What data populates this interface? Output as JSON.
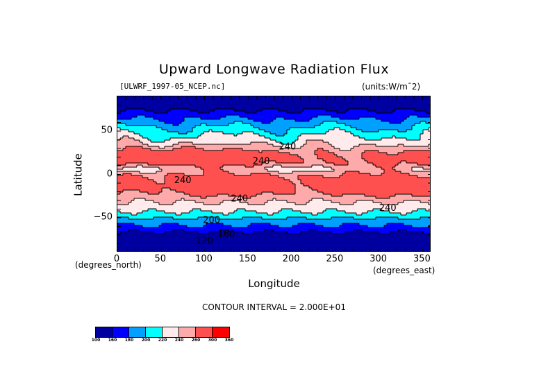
{
  "chart_data": {
    "type": "heatmap",
    "title": "Upward Longwave Radiation Flux",
    "subtitle": "[ULWRF_1997-05_NCEP.nc]",
    "units": "(units:W/m¯2)",
    "xlabel": "Longitude",
    "ylabel": "Latitude",
    "x_units": "(degrees_east)",
    "y_units": "(degrees_north)",
    "xlim": [
      0,
      360
    ],
    "ylim": [
      -90,
      90
    ],
    "x_ticks": [
      "0",
      "50",
      "100",
      "150",
      "200",
      "250",
      "300",
      "350"
    ],
    "x_tick_values": [
      0,
      50,
      100,
      150,
      200,
      250,
      300,
      350
    ],
    "y_ticks": [
      "50",
      "0",
      "−50"
    ],
    "y_tick_values": [
      50,
      0,
      -50
    ],
    "contour_interval_text": "CONTOUR INTERVAL = 2.000E+01",
    "contour_interval": 20,
    "contour_labels": [
      {
        "text": "240",
        "lon": 195,
        "lat": 33
      },
      {
        "text": "240",
        "lon": 165,
        "lat": 16
      },
      {
        "text": "240",
        "lon": 75,
        "lat": -6
      },
      {
        "text": "240",
        "lon": 140,
        "lat": -27
      },
      {
        "text": "240",
        "lon": 310,
        "lat": -38
      },
      {
        "text": "200",
        "lon": 108,
        "lat": -52
      },
      {
        "text": "160",
        "lon": 125,
        "lat": -68
      },
      {
        "text": "120",
        "lon": 100,
        "lat": -76
      }
    ],
    "colorbar": {
      "levels": [
        "100",
        "160",
        "180",
        "200",
        "220",
        "240",
        "260",
        "300",
        "360"
      ],
      "colors": [
        "#0000a0",
        "#0000ff",
        "#00a0ff",
        "#00ffff",
        "#ffebeb",
        "#ffaaaa",
        "#ff5050",
        "#ff0000"
      ]
    }
  }
}
